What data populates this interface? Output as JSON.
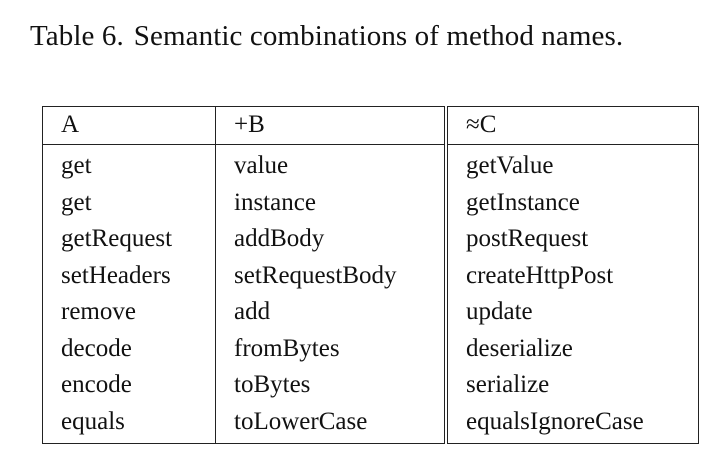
{
  "caption": {
    "label": "Table 6.",
    "text": "Semantic combinations of method names."
  },
  "table": {
    "headers": [
      "A",
      "+B",
      "≈C"
    ],
    "rows": [
      [
        "get",
        "value",
        "getValue"
      ],
      [
        "get",
        "instance",
        "getInstance"
      ],
      [
        "getRequest",
        "addBody",
        "postRequest"
      ],
      [
        "setHeaders",
        "setRequestBody",
        "createHttpPost"
      ],
      [
        "remove",
        "add",
        "update"
      ],
      [
        "decode",
        "fromBytes",
        "deserialize"
      ],
      [
        "encode",
        "toBytes",
        "serialize"
      ],
      [
        "equals",
        "toLowerCase",
        "equalsIgnoreCase"
      ]
    ]
  }
}
